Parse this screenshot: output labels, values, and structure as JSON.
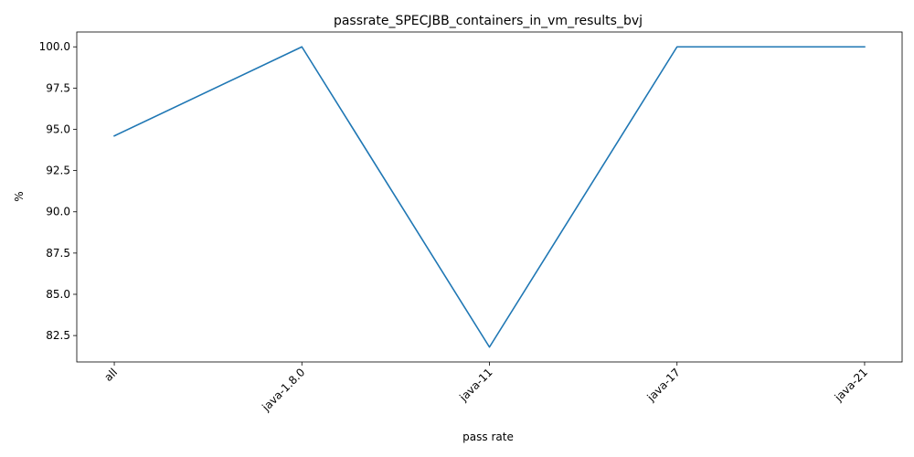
{
  "chart_data": {
    "type": "line",
    "title": "passrate_SPECJBB_containers_in_vm_results_bvj",
    "xlabel": "pass rate",
    "ylabel": "%",
    "categories": [
      "all",
      "java-1.8.0",
      "java-11",
      "java-17",
      "java-21"
    ],
    "series": [
      {
        "values": [
          94.6,
          100.0,
          81.8,
          100.0,
          100.0
        ],
        "color": "#1f77b4"
      }
    ],
    "ylim": [
      80.9,
      100.9
    ],
    "yticks": [
      82.5,
      85.0,
      87.5,
      90.0,
      92.5,
      95.0,
      97.5,
      100.0
    ],
    "ytick_labels": [
      "82.5",
      "85.0",
      "87.5",
      "90.0",
      "92.5",
      "95.0",
      "97.5",
      "100.0"
    ],
    "grid": false,
    "legend": "none"
  }
}
